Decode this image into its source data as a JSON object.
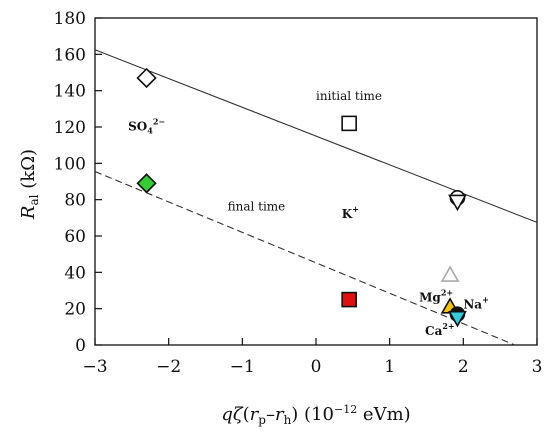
{
  "chart_data": {
    "type": "scatter",
    "xlabel": {
      "q": "q",
      "zeta": "ζ",
      "paren_open": "(",
      "rp_r": "r",
      "rp_sub": "p",
      "dash": "–",
      "rh_r": "r",
      "rh_sub": "h",
      "paren_close": ")",
      "unit_open": " (10",
      "unit_exp": "−12",
      "unit_close": " eVm)"
    },
    "ylabel": {
      "R": "R",
      "sub": "al",
      "unit": " (kΩ)"
    },
    "xlim": [
      -3,
      3
    ],
    "ylim": [
      0,
      180
    ],
    "xticks": [
      -3,
      -2,
      -1,
      0,
      1,
      2,
      3
    ],
    "xtick_labels": [
      "−3",
      "−2",
      "−1",
      "0",
      "1",
      "2",
      "3"
    ],
    "yticks": [
      0,
      20,
      40,
      60,
      80,
      100,
      120,
      140,
      160,
      180
    ],
    "ytick_labels": [
      "0",
      "20",
      "40",
      "60",
      "80",
      "100",
      "120",
      "140",
      "160",
      "180"
    ],
    "grid": false,
    "lines": [
      {
        "label": "initial time",
        "style": "solid",
        "color": "#333333",
        "x": [
          -3,
          3
        ],
        "y": [
          162.5,
          67.5
        ]
      },
      {
        "label": "final time",
        "style": "dashed",
        "color": "#333333",
        "x": [
          -3,
          2.7
        ],
        "y": [
          95.5,
          0
        ]
      }
    ],
    "points": [
      {
        "marker": "diamond",
        "x": -2.3,
        "y": 147,
        "fill": "#ffffff",
        "stroke": "#111111"
      },
      {
        "marker": "square",
        "x": 0.45,
        "y": 122,
        "fill": "#ffffff",
        "stroke": "#111111"
      },
      {
        "marker": "circle",
        "x": 1.92,
        "y": 81,
        "fill": "#ffffff",
        "stroke": "#111111"
      },
      {
        "marker": "triangle-down",
        "x": 1.92,
        "y": 79,
        "fill": "#ffffff",
        "stroke": "#111111"
      },
      {
        "marker": "diamond",
        "x": -2.3,
        "y": 89,
        "fill": "#33cc33",
        "stroke": "#111111"
      },
      {
        "marker": "square",
        "x": 0.45,
        "y": 25,
        "fill": "#e01010",
        "stroke": "#111111"
      },
      {
        "marker": "triangle-up",
        "x": 1.82,
        "y": 38.5,
        "fill": "#ffffff",
        "stroke": "#aaaaaa"
      },
      {
        "marker": "triangle-up",
        "x": 1.82,
        "y": 21,
        "fill": "#f5c400",
        "stroke": "#111111"
      },
      {
        "marker": "circle",
        "x": 1.92,
        "y": 17,
        "fill": "#111111",
        "stroke": "#111111"
      },
      {
        "marker": "triangle-down",
        "x": 1.92,
        "y": 15,
        "fill": "#33ccdd",
        "stroke": "#111111"
      }
    ],
    "annotations": [
      {
        "text": "initial time",
        "x": 0.0,
        "y": 135,
        "kind": "plain"
      },
      {
        "text": "final time",
        "x": -1.2,
        "y": 74,
        "kind": "plain"
      },
      {
        "text": "SO",
        "sub": "4",
        "sup": "2−",
        "x": -2.55,
        "y": 118,
        "kind": "ion"
      },
      {
        "text": "K",
        "sup": "+",
        "x": 0.35,
        "y": 70,
        "kind": "ion"
      },
      {
        "text": "Mg",
        "sup": "2+",
        "x": 1.4,
        "y": 24,
        "kind": "ion"
      },
      {
        "text": "Na",
        "sup": "+",
        "x": 2.0,
        "y": 20,
        "kind": "ion"
      },
      {
        "text": "Ca",
        "sup": "2+",
        "x": 1.48,
        "y": 5.5,
        "kind": "ion"
      }
    ]
  }
}
